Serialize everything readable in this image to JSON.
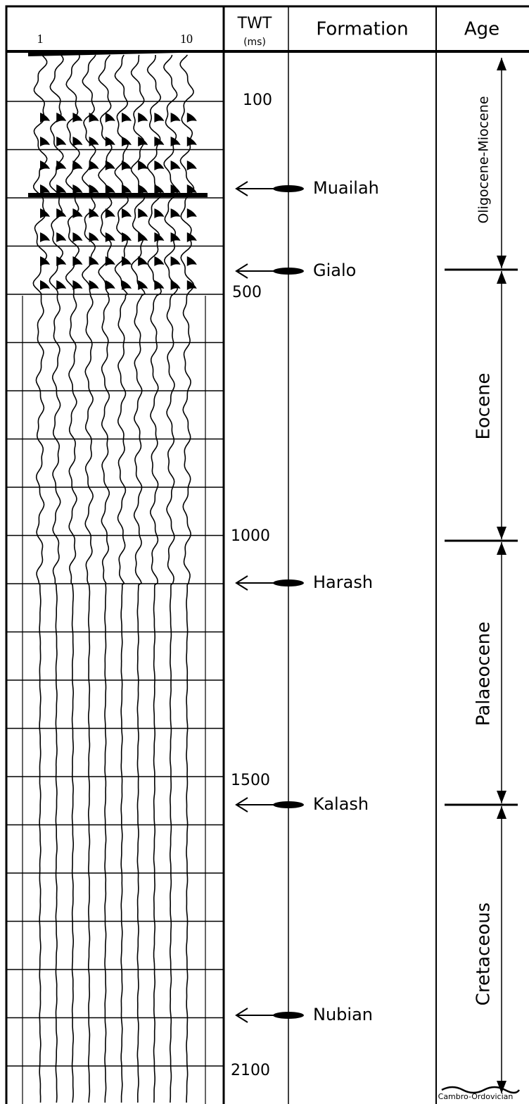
{
  "header": {
    "traces": [
      "1",
      "10"
    ],
    "twt": "TWT",
    "twt_unit": "(ms)",
    "formation": "Formation",
    "age": "Age"
  },
  "twt_labels": [
    "100",
    "500",
    "1000",
    "1500",
    "2100"
  ],
  "formations": [
    "Muailah",
    "Gialo",
    "Harash",
    "Kalash",
    "Nubian"
  ],
  "ages": [
    "Oligocene-Miocene",
    "Eocene",
    "Palaeocene",
    "Cretaceous",
    "Cambro-Ordovician"
  ]
}
